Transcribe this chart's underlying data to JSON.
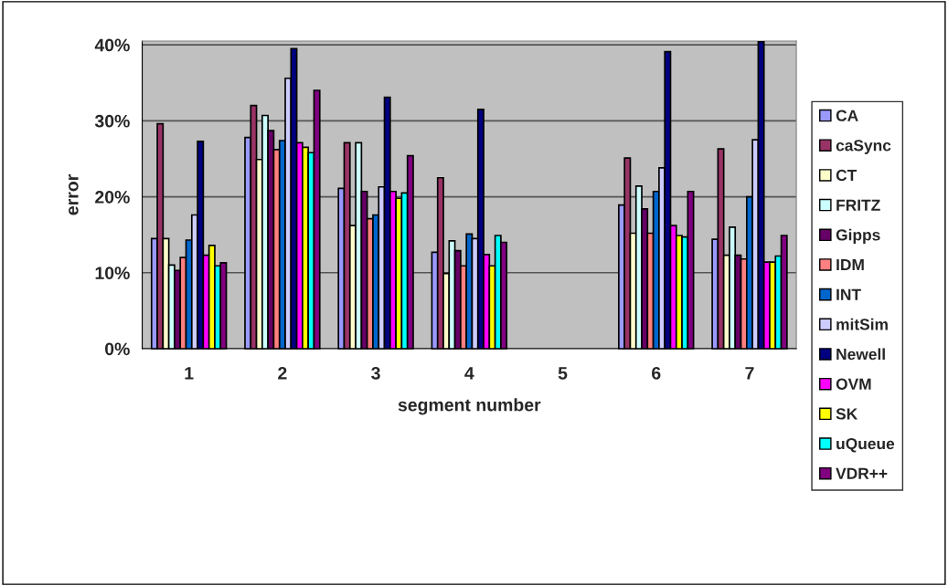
{
  "chart_data": {
    "type": "bar",
    "xlabel": "segment number",
    "ylabel": "error",
    "categories": [
      "1",
      "2",
      "3",
      "4",
      "5",
      "6",
      "7"
    ],
    "ylim": [
      0,
      40.5
    ],
    "yticks": [
      {
        "value": 0,
        "label": "0%"
      },
      {
        "value": 10,
        "label": "10%"
      },
      {
        "value": 20,
        "label": "20%"
      },
      {
        "value": 30,
        "label": "30%"
      },
      {
        "value": 40,
        "label": "40%"
      }
    ],
    "grid": "y",
    "legend": "right",
    "series": [
      {
        "name": "CA",
        "color": "#9999ff",
        "values": [
          14.5,
          27.8,
          21.1,
          12.7,
          null,
          18.9,
          14.4
        ]
      },
      {
        "name": "caSync",
        "color": "#993366",
        "values": [
          29.6,
          32.0,
          27.1,
          22.5,
          null,
          25.1,
          26.3
        ]
      },
      {
        "name": "CT",
        "color": "#ffffcc",
        "values": [
          14.5,
          24.9,
          16.2,
          9.9,
          null,
          15.2,
          12.3
        ]
      },
      {
        "name": "FRITZ",
        "color": "#ccffff",
        "values": [
          11.0,
          30.7,
          27.1,
          14.2,
          null,
          21.4,
          16.0
        ]
      },
      {
        "name": "Gipps",
        "color": "#660066",
        "values": [
          10.3,
          28.7,
          20.7,
          12.9,
          null,
          18.4,
          12.3
        ]
      },
      {
        "name": "IDM",
        "color": "#ff8080",
        "values": [
          12.0,
          26.2,
          17.1,
          10.9,
          null,
          15.2,
          11.8
        ]
      },
      {
        "name": "INT",
        "color": "#0066cc",
        "values": [
          14.3,
          27.4,
          17.6,
          15.1,
          null,
          20.7,
          20.0
        ]
      },
      {
        "name": "mitSim",
        "color": "#ccccff",
        "values": [
          17.6,
          35.6,
          21.3,
          14.5,
          null,
          23.8,
          27.5
        ]
      },
      {
        "name": "Newell",
        "color": "#000080",
        "values": [
          27.3,
          39.5,
          33.1,
          31.5,
          null,
          39.1,
          40.4
        ]
      },
      {
        "name": "OVM",
        "color": "#ff00ff",
        "values": [
          12.3,
          27.1,
          20.7,
          12.4,
          null,
          16.2,
          11.4
        ]
      },
      {
        "name": "SK",
        "color": "#ffff00",
        "values": [
          13.6,
          26.5,
          19.8,
          10.9,
          null,
          14.9,
          11.4
        ]
      },
      {
        "name": "uQueue",
        "color": "#00ffff",
        "values": [
          10.9,
          25.8,
          20.5,
          14.9,
          null,
          14.7,
          12.2
        ]
      },
      {
        "name": "VDR++",
        "color": "#800080",
        "values": [
          11.3,
          34.0,
          25.4,
          14.0,
          null,
          20.7,
          14.9
        ]
      }
    ]
  }
}
